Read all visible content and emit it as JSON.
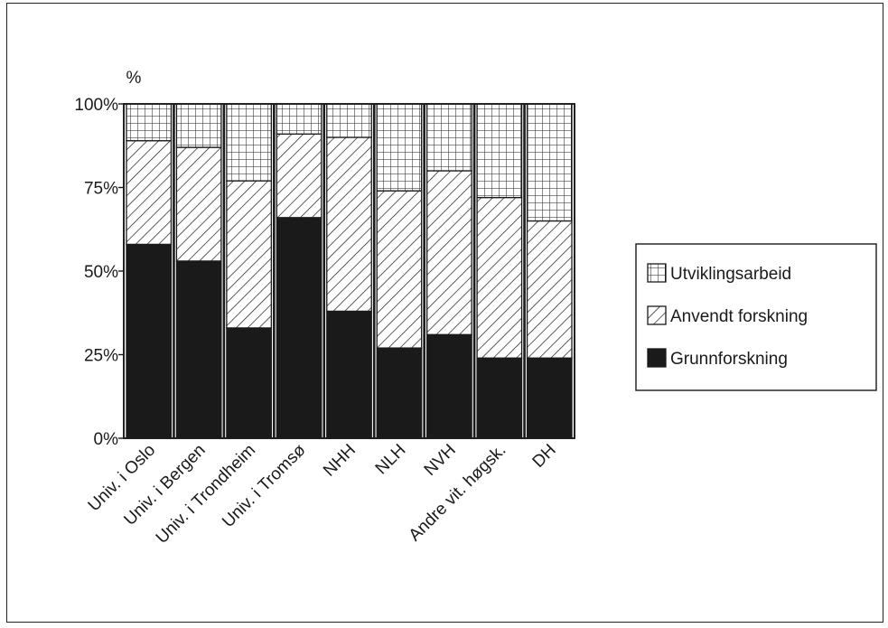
{
  "chart_data": {
    "type": "bar",
    "stacked": true,
    "normalized_percent": true,
    "ylabel": "%",
    "yticks": [
      "0%",
      "25%",
      "50%",
      "75%",
      "100%"
    ],
    "ylim": [
      0,
      100
    ],
    "categories": [
      "Univ. i Oslo",
      "Univ. i Bergen",
      "Univ. i Trondheim",
      "Univ. i Tromsø",
      "NHH",
      "NLH",
      "NVH",
      "Andre vit. høgsk.",
      "DH"
    ],
    "series": [
      {
        "name": "Grunnforskning",
        "pattern": "solid",
        "values": [
          58,
          53,
          33,
          66,
          38,
          27,
          31,
          24,
          24
        ]
      },
      {
        "name": "Anvendt forskning",
        "pattern": "diagonal-hatch",
        "values": [
          31,
          34,
          44,
          25,
          52,
          47,
          49,
          48,
          41
        ]
      },
      {
        "name": "Utviklingsarbeid",
        "pattern": "grid",
        "values": [
          11,
          13,
          23,
          9,
          10,
          26,
          20,
          28,
          35
        ]
      }
    ],
    "legend_order": [
      "Utviklingsarbeid",
      "Anvendt forskning",
      "Grunnforskning"
    ],
    "legend_position": "right",
    "grid": false,
    "colors": {
      "ink": "#1a1a1a",
      "background": "#ffffff"
    }
  }
}
